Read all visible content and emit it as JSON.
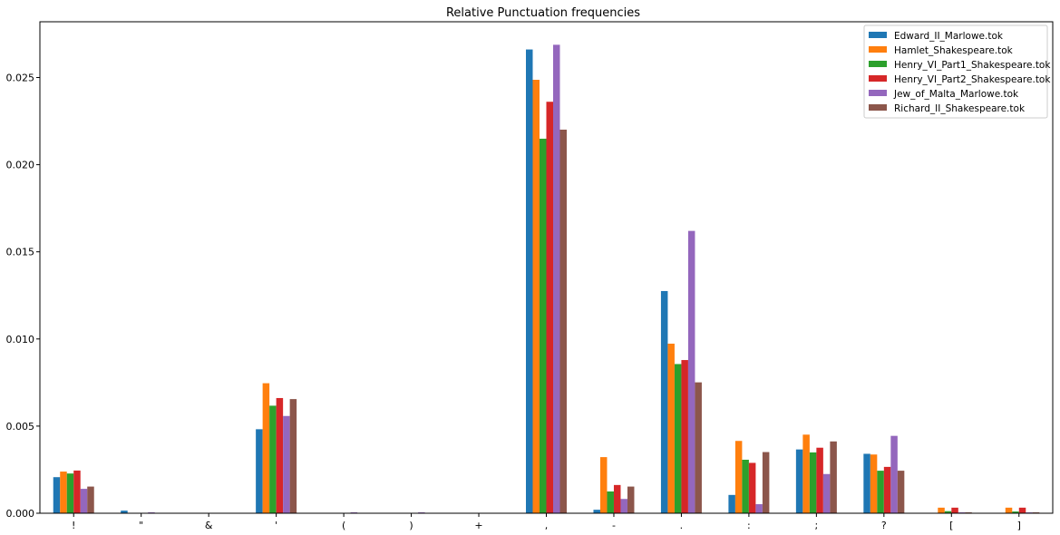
{
  "chart_data": {
    "type": "bar",
    "title": "Relative Punctuation frequencies",
    "xlabel": "",
    "ylabel": "",
    "ylim": [
      0,
      0.0282
    ],
    "yticks": [
      "0.000",
      "0.005",
      "0.010",
      "0.015",
      "0.020",
      "0.025"
    ],
    "grid": false,
    "legend_position": "top-right",
    "categories": [
      "!",
      "\"",
      "&",
      "'",
      "(",
      ")",
      "+",
      ",",
      "-",
      ".",
      ":",
      ";",
      "?",
      "[",
      "]"
    ],
    "series": [
      {
        "name": "Edward_II_Marlowe.tok",
        "color": "#1f77b4",
        "values": [
          0.00207,
          0.00015,
          0,
          0.00482,
          0,
          0,
          0,
          0.02661,
          0.0002,
          0.01275,
          0.00105,
          0.00366,
          0.00341,
          0,
          0
        ]
      },
      {
        "name": "Hamlet_Shakespeare.tok",
        "color": "#ff7f0e",
        "values": [
          0.00239,
          2e-05,
          0,
          0.00746,
          0,
          0,
          0,
          0.02487,
          0.00322,
          0.00973,
          0.00415,
          0.00451,
          0.00337,
          0.00032,
          0.00032
        ]
      },
      {
        "name": "Henry_VI_Part1_Shakespeare.tok",
        "color": "#2ca02c",
        "values": [
          0.00228,
          0,
          0,
          0.00617,
          0,
          0,
          0,
          0.02149,
          0.00125,
          0.00856,
          0.00307,
          0.00349,
          0.00244,
          0.00012,
          0.0001
        ]
      },
      {
        "name": "Henry_VI_Part2_Shakespeare.tok",
        "color": "#d62728",
        "values": [
          0.00245,
          0,
          0,
          0.00661,
          0,
          0,
          0,
          0.02361,
          0.00162,
          0.00879,
          0.00289,
          0.00376,
          0.00266,
          0.00032,
          0.00032
        ]
      },
      {
        "name": "Jew_of_Malta_Marlowe.tok",
        "color": "#9467bd",
        "values": [
          0.0014,
          5e-05,
          0,
          0.00558,
          5e-05,
          5e-05,
          0,
          0.02688,
          0.00082,
          0.0162,
          0.00052,
          0.00225,
          0.00444,
          5e-05,
          5e-05
        ]
      },
      {
        "name": "Richard_II_Shakespeare.tok",
        "color": "#8c564b",
        "values": [
          0.00153,
          0,
          0,
          0.00655,
          0,
          0,
          0,
          0.02201,
          0.00153,
          0.00751,
          0.00351,
          0.00412,
          0.00244,
          5e-05,
          5e-05
        ]
      }
    ]
  }
}
